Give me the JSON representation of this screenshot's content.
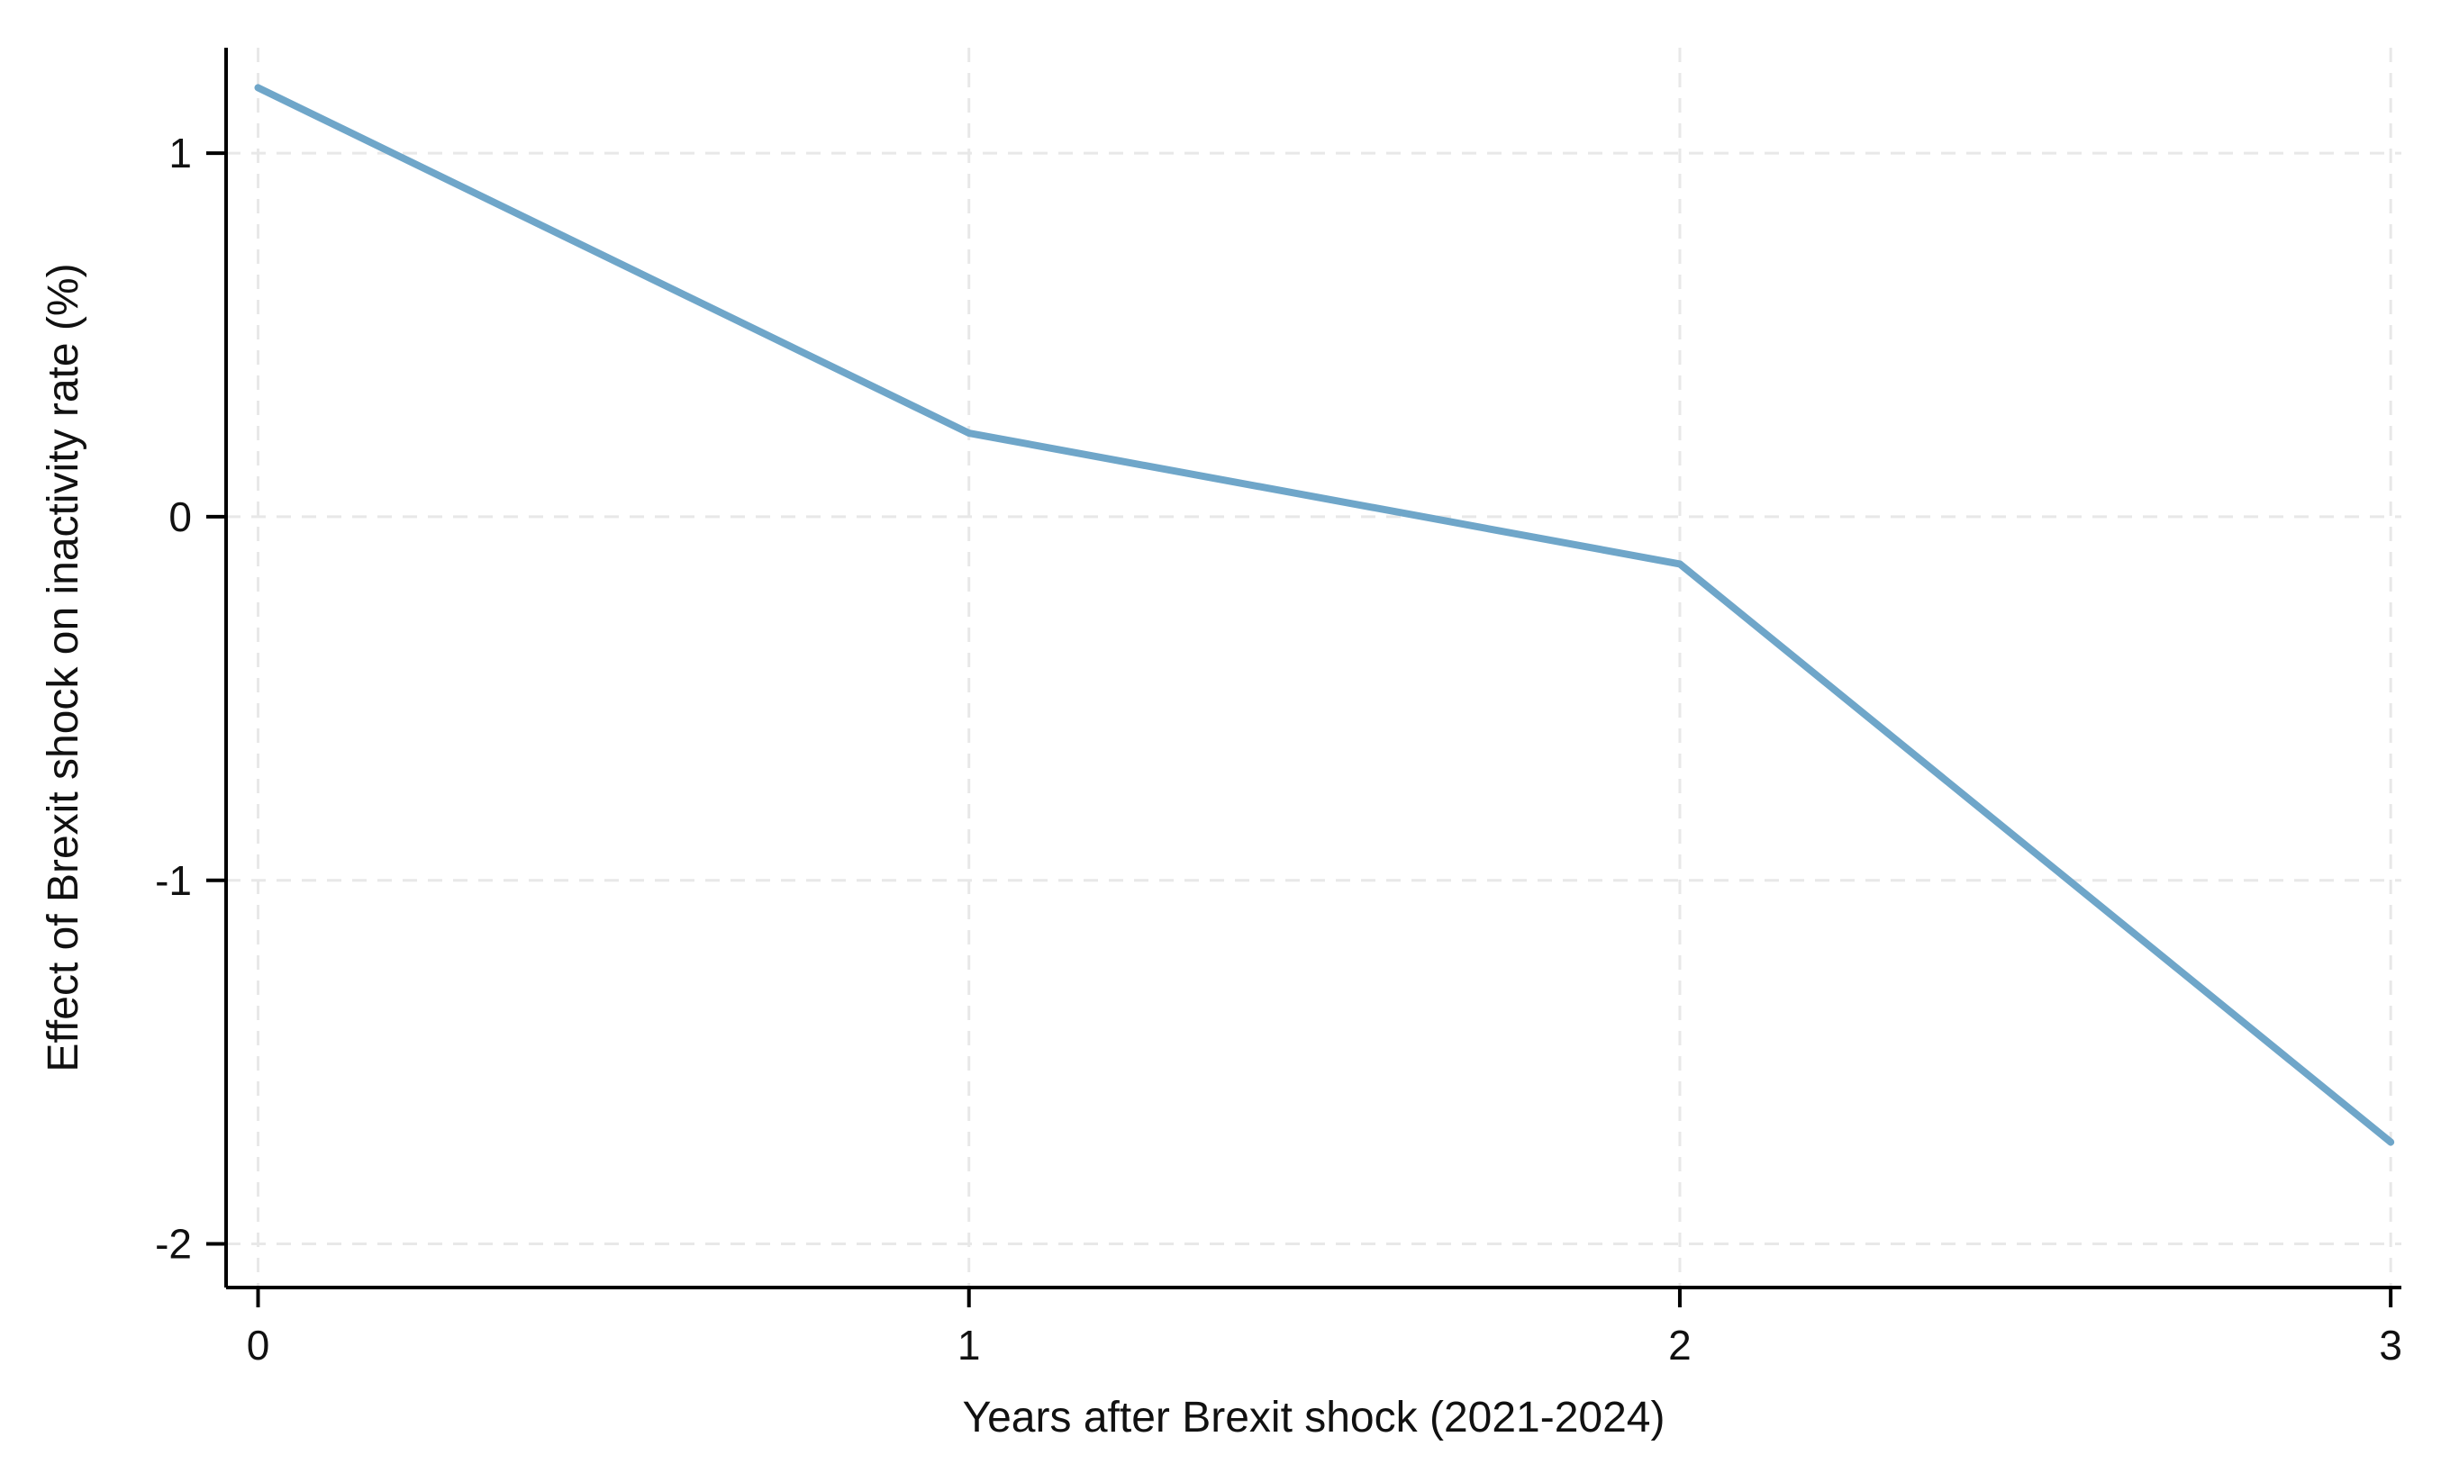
{
  "chart_data": {
    "type": "line",
    "title": "",
    "xlabel": "Years after Brexit shock (2021-2024)",
    "ylabel": "Effect of Brexit shock on inactivity rate (%)",
    "x": [
      0,
      1,
      2,
      3
    ],
    "y": [
      1.18,
      0.23,
      -0.13,
      -1.72
    ],
    "xticks": [
      0,
      1,
      2,
      3
    ],
    "yticks": [
      1,
      0,
      -1,
      -2
    ],
    "xlim": [
      -0.045,
      3.015
    ],
    "ylim": [
      -2.12,
      1.29
    ],
    "grid": true,
    "legend": "none",
    "line_color": "#6fa6c9",
    "axis_color": "#000000",
    "grid_color": "#e8e8e8",
    "background_color": "#ffffff"
  }
}
